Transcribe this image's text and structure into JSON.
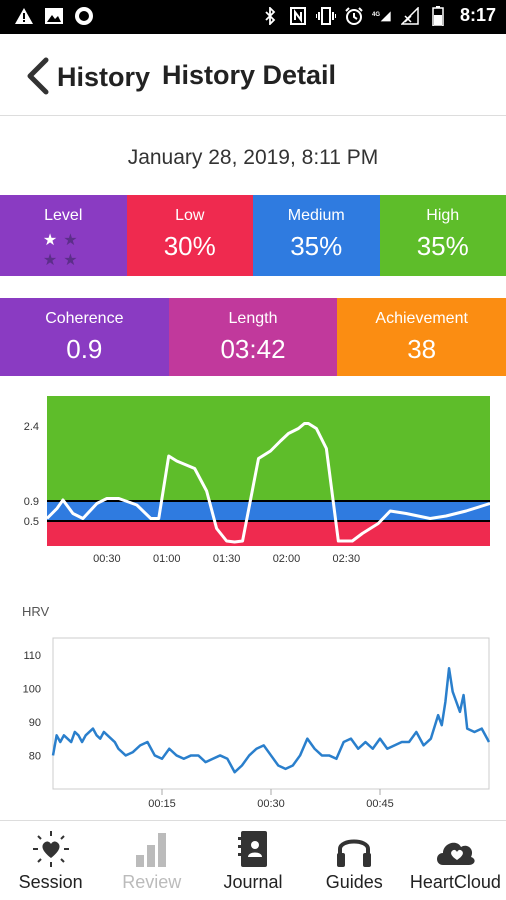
{
  "status_bar": {
    "time": "8:17",
    "left_icons": [
      "warning-icon",
      "image-icon",
      "record-icon"
    ],
    "right_icons": [
      "bluetooth-icon",
      "nfc-icon",
      "vibrate-icon",
      "alarm-icon",
      "network-4g-icon",
      "signal-icon",
      "battery-icon"
    ]
  },
  "header": {
    "back_label": "History",
    "title": "History Detail"
  },
  "session": {
    "date": "January 28, 2019, 8:11 PM"
  },
  "stats": {
    "level_label": "Level",
    "level_stars": 1,
    "level_stars_total": 4,
    "low_label": "Low",
    "low_value": "30%",
    "medium_label": "Medium",
    "medium_value": "35%",
    "high_label": "High",
    "high_value": "35%",
    "coherence_label": "Coherence",
    "coherence_value": "0.9",
    "length_label": "Length",
    "length_value": "03:42",
    "achievement_label": "Achievement",
    "achievement_value": "38"
  },
  "colors": {
    "level": "#8a3bc2",
    "low": "#ef2a4f",
    "medium": "#2f7be0",
    "high": "#5ebd2a",
    "coherence": "#8a3bc2",
    "length": "#c1399c",
    "achievement": "#fb8d12",
    "hrv_line": "#2a7fcc"
  },
  "chart_data": [
    {
      "type": "line",
      "ylim": [
        0,
        3.0
      ],
      "xlim": [
        0,
        222
      ],
      "zones": [
        {
          "from": 0,
          "to": 0.5,
          "color": "#ef2a4f"
        },
        {
          "from": 0.5,
          "to": 0.9,
          "color": "#2f7be0"
        },
        {
          "from": 0.9,
          "to": 3.0,
          "color": "#5ebd2a"
        }
      ],
      "ytick_labels": [
        "0.5",
        "0.9",
        "2.4"
      ],
      "ytick_values": [
        0.5,
        0.9,
        2.4
      ],
      "xtick_labels": [
        "00:30",
        "01:00",
        "01:30",
        "02:00",
        "02:30"
      ],
      "xtick_values": [
        30,
        60,
        90,
        120,
        150
      ],
      "x": [
        0,
        5,
        8,
        13,
        18,
        25,
        30,
        36,
        45,
        52,
        56,
        61,
        65,
        74,
        80,
        85,
        90,
        94,
        98,
        106,
        112,
        117,
        121,
        126,
        129,
        131,
        135,
        140,
        146,
        153,
        158,
        166,
        172,
        180,
        186,
        192,
        200,
        210,
        218,
        222
      ],
      "y": [
        0.55,
        0.75,
        0.92,
        0.65,
        0.55,
        0.85,
        0.95,
        0.95,
        0.82,
        0.55,
        0.55,
        1.8,
        1.7,
        1.55,
        1.1,
        0.35,
        0.1,
        0.08,
        0.1,
        1.75,
        1.9,
        2.1,
        2.25,
        2.35,
        2.45,
        2.45,
        2.35,
        1.95,
        0.1,
        0.1,
        0.25,
        0.45,
        0.7,
        0.65,
        0.6,
        0.55,
        0.6,
        0.7,
        0.8,
        0.85
      ]
    },
    {
      "type": "line",
      "ylabel": "HRV",
      "ylim": [
        70,
        115
      ],
      "xlim": [
        0,
        60
      ],
      "ytick_labels": [
        "80",
        "90",
        "100",
        "110"
      ],
      "ytick_values": [
        80,
        90,
        100,
        110
      ],
      "xtick_labels": [
        "00:15",
        "00:30",
        "00:45"
      ],
      "xtick_values": [
        15,
        30,
        45
      ],
      "x": [
        0,
        0.5,
        1,
        1.5,
        2,
        2.5,
        3,
        3.5,
        4,
        4.5,
        5,
        5.5,
        6,
        6.5,
        7,
        7.5,
        8,
        8.5,
        9,
        10,
        11,
        12,
        13,
        14,
        15,
        16,
        17,
        18,
        19,
        20,
        21,
        22,
        23,
        24,
        25,
        26,
        27,
        28,
        29,
        30,
        31,
        32,
        33,
        34,
        35,
        36,
        37,
        38,
        39,
        40,
        41,
        42,
        43,
        44,
        45,
        46,
        47,
        48,
        49,
        50,
        51,
        52,
        53,
        53.5,
        54,
        54.5,
        55,
        55.5,
        56,
        56.5,
        57,
        58,
        59,
        60
      ],
      "y": [
        80,
        86,
        84,
        86,
        85,
        84,
        87,
        86,
        84,
        86,
        87,
        88,
        86,
        85,
        87,
        86,
        85,
        84,
        82,
        80,
        81,
        83,
        84,
        80,
        79,
        82,
        80,
        79,
        80,
        80,
        78,
        79,
        80,
        79,
        75,
        77,
        80,
        82,
        83,
        80,
        77,
        76,
        77,
        80,
        85,
        82,
        80,
        80,
        79,
        84,
        85,
        82,
        84,
        82,
        85,
        82,
        83,
        84,
        84,
        87,
        83,
        85,
        92,
        89,
        96,
        106,
        99,
        96,
        93,
        98,
        88,
        87,
        88,
        84
      ]
    }
  ],
  "nav": {
    "items": [
      {
        "label": "Session",
        "icon": "heart-burst-icon",
        "enabled": true
      },
      {
        "label": "Review",
        "icon": "bar-chart-icon",
        "enabled": false
      },
      {
        "label": "Journal",
        "icon": "journal-icon",
        "enabled": true
      },
      {
        "label": "Guides",
        "icon": "headphones-icon",
        "enabled": true
      },
      {
        "label": "HeartCloud",
        "icon": "heart-cloud-icon",
        "enabled": true
      }
    ]
  }
}
